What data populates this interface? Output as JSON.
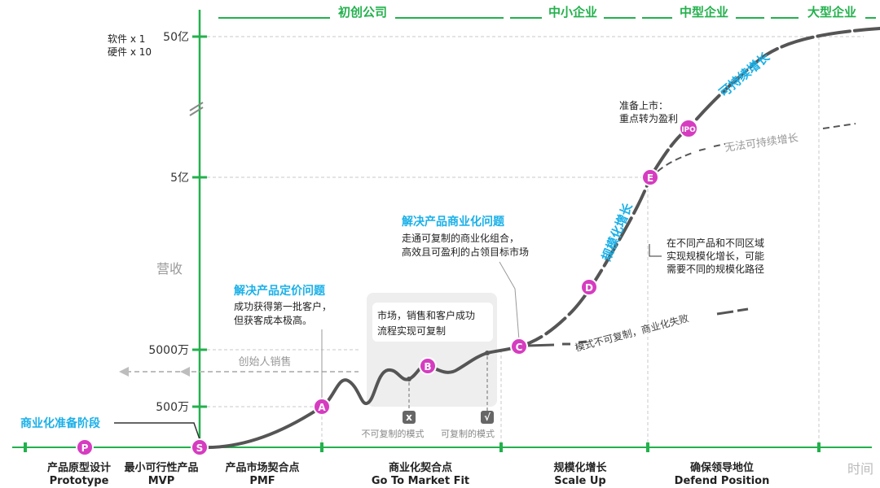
{
  "y_axis": {
    "title": "营收",
    "ticks": [
      "50亿",
      "5亿",
      "5000万",
      "500万"
    ],
    "multiplier_note": [
      "软件 x 1",
      "硬件 x 10"
    ]
  },
  "x_axis": {
    "title": "时间"
  },
  "stages": [
    "初创公司",
    "中小企业",
    "中型企业",
    "大型企业"
  ],
  "milestones": [
    {
      "zh": "产品原型设计",
      "en": "Prototype"
    },
    {
      "zh": "最小可行性产品",
      "en": "MVP"
    },
    {
      "zh": "产品市场契合点",
      "en": "PMF"
    },
    {
      "zh": "商业化契合点",
      "en": "Go To Market Fit"
    },
    {
      "zh": "规模化增长",
      "en": "Scale Up"
    },
    {
      "zh": "确保领导地位",
      "en": "Defend Position"
    }
  ],
  "markers": [
    "P",
    "S",
    "A",
    "B",
    "C",
    "D",
    "E",
    "IPO"
  ],
  "annotations": {
    "pre_commercial": "商业化准备阶段",
    "founder_sales": "创始人销售",
    "pricing_title": "解决产品定价问题",
    "pricing_body": [
      "成功获得第一批客户，",
      "但获客成本极高。"
    ],
    "commercial_title": "解决产品商业化问题",
    "commercial_body": [
      "走通可复制的商业化组合，",
      "高效且可盈利的占领目标市场"
    ],
    "repeatable_box": [
      "市场，销售和客户成功",
      "流程实现可复制"
    ],
    "not_repeatable": "不可复制的模式",
    "repeatable": "可复制的模式",
    "not_repeatable_mark": "x",
    "repeatable_mark": "√",
    "failure": "模式不可复制，商业化失败",
    "scale_label": "规模化增长",
    "scale_note": [
      "在不同产品和不同区域",
      "实现规模化增长，可能",
      "需要不同的规模化路径"
    ],
    "ipo_note": [
      "准备上市：",
      "重点转为盈利"
    ],
    "sustain": "可持续增长",
    "not_sustain": "无法可持续增长"
  },
  "colors": {
    "green": "#22b14c",
    "cyan": "#1ab0e8",
    "magenta": "#d63cc0",
    "curve": "#555555"
  }
}
